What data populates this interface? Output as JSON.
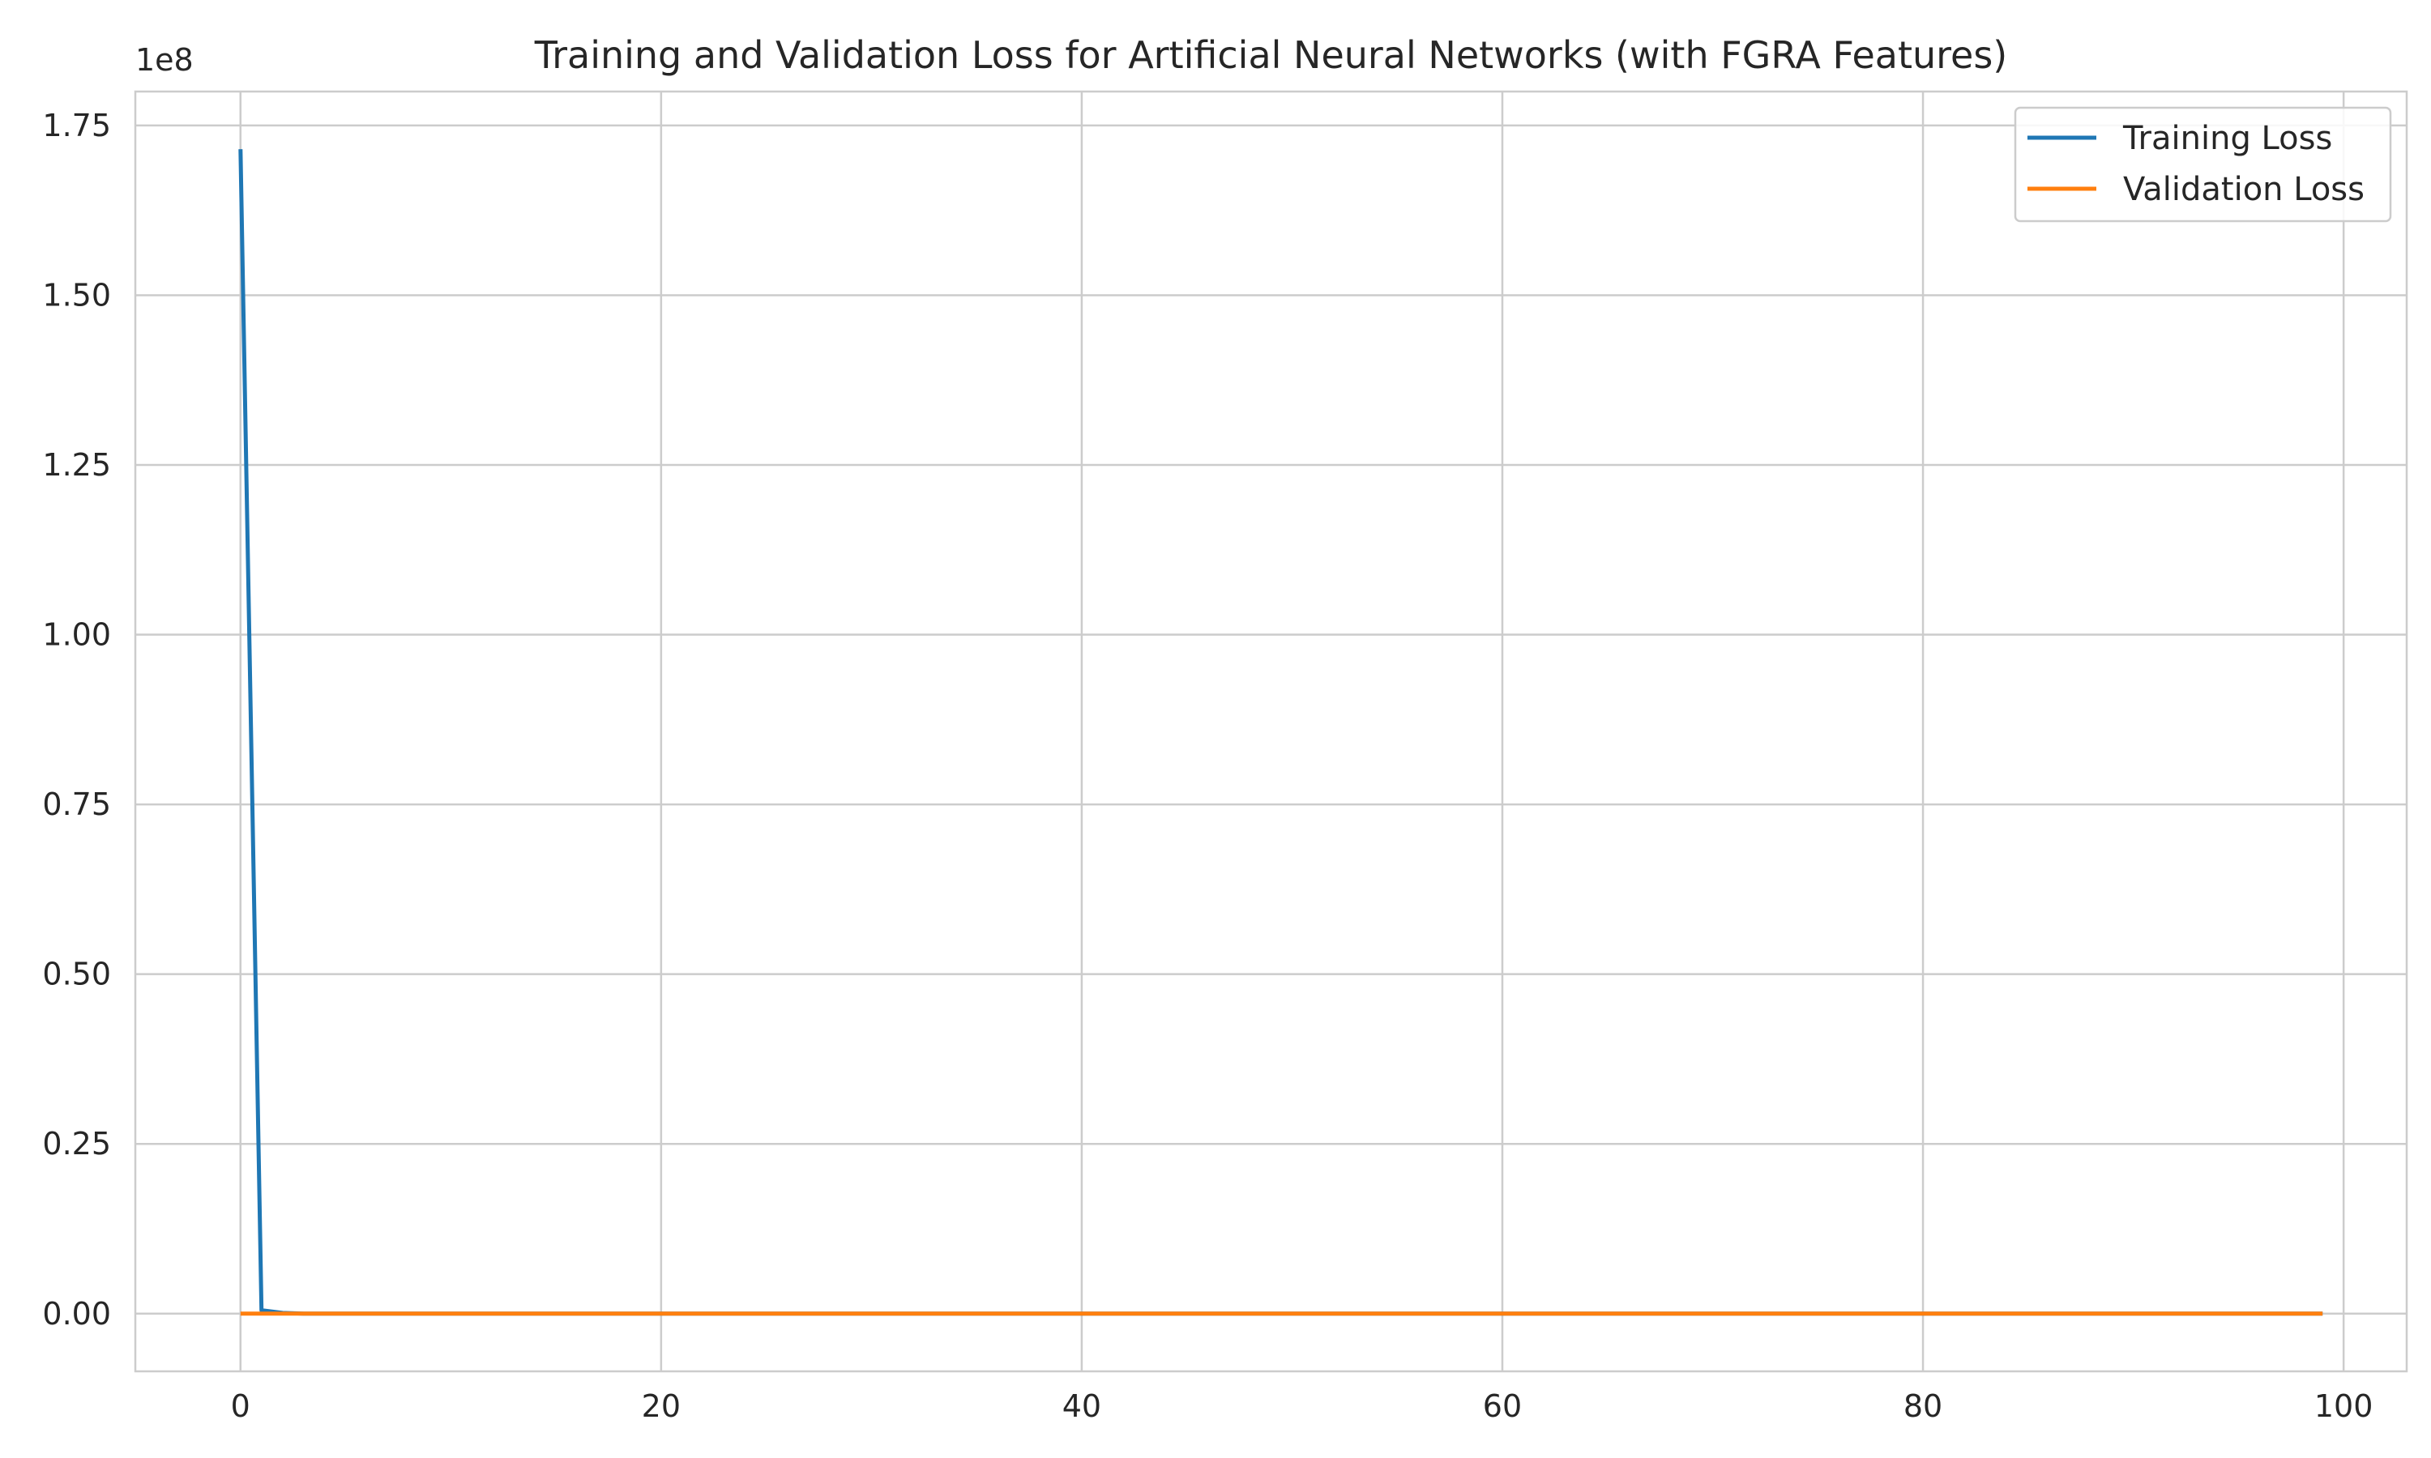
{
  "chart_data": {
    "type": "line",
    "title": "Training and Validation Loss for Artificial Neural Networks (with FGRA Features)",
    "xlabel": "",
    "ylabel": "",
    "y_offset_label": "1e8",
    "xlim": [
      -5,
      103
    ],
    "ylim": [
      -0.085,
      1.8
    ],
    "y_scale_multiplier": 100000000,
    "x_ticks": [
      0,
      20,
      40,
      60,
      80,
      100
    ],
    "x_tick_labels": [
      "0",
      "20",
      "40",
      "60",
      "80",
      "100"
    ],
    "y_ticks": [
      0.0,
      0.25,
      0.5,
      0.75,
      1.0,
      1.25,
      1.5,
      1.75
    ],
    "y_tick_labels": [
      "0.00",
      "0.25",
      "0.50",
      "0.75",
      "1.00",
      "1.25",
      "1.50",
      "1.75"
    ],
    "grid": true,
    "legend_position": "top-right",
    "series": [
      {
        "name": "Training Loss",
        "color": "#1f77b4",
        "x": [
          0,
          1,
          2,
          3,
          4,
          5,
          10,
          20,
          30,
          40,
          50,
          60,
          70,
          80,
          90,
          99
        ],
        "y": [
          1.715,
          0.005,
          0.001,
          0.0,
          0.0,
          0.0,
          0.0,
          0.0,
          0.0,
          0.0,
          0.0,
          0.0,
          0.0,
          0.0,
          0.0,
          0.0
        ]
      },
      {
        "name": "Validation Loss",
        "color": "#ff7f0e",
        "x": [
          0,
          1,
          2,
          3,
          4,
          5,
          10,
          20,
          30,
          40,
          50,
          60,
          70,
          80,
          90,
          99
        ],
        "y": [
          0.0,
          0.0,
          0.0,
          0.0,
          0.0,
          0.0,
          0.0,
          0.0,
          0.0,
          0.0,
          0.0,
          0.0,
          0.0,
          0.0,
          0.0,
          0.0
        ]
      }
    ]
  }
}
